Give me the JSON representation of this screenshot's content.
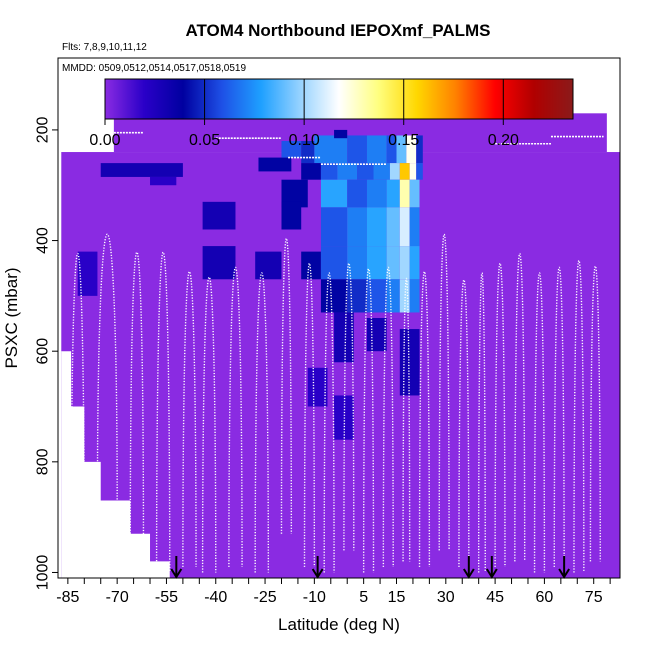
{
  "chart_data": {
    "type": "heatmap",
    "title": "ATOM4 Northbound IEPOXmf_PALMS",
    "subtitle_flights": "Flts: 7,8,9,10,11,12",
    "subtitle_dates": "MMDD: 0509,0512,0514,0517,0518,0519",
    "xlabel": "Latitude (deg N)",
    "ylabel": "PSXC (mbar)",
    "xlim": [
      -88,
      83
    ],
    "ylim": [
      1010,
      70
    ],
    "y_reversed": true,
    "x_tick_labels": [
      "-85",
      "-70",
      "-55",
      "-40",
      "-25",
      "-10",
      "5",
      "15",
      "30",
      "45",
      "60",
      "75"
    ],
    "x_tick_values": [
      -85,
      -70,
      -55,
      -40,
      -25,
      -10,
      5,
      15,
      30,
      45,
      60,
      75
    ],
    "y_tick_labels": [
      "200",
      "400",
      "600",
      "800",
      "1000"
    ],
    "y_tick_values": [
      200,
      400,
      600,
      800,
      1000
    ],
    "colorbar": {
      "min": 0.0,
      "max": 0.235,
      "tick_labels": [
        "0.00",
        "0.05",
        "0.10",
        "0.15",
        "0.20"
      ],
      "tick_values": [
        0.0,
        0.05,
        0.1,
        0.15,
        0.2
      ],
      "stops": [
        "#8a2be2",
        "#2a00c8",
        "#0000a0",
        "#1e50e6",
        "#1ea0ff",
        "#96d2ff",
        "#ffffff",
        "#ffff80",
        "#ffd700",
        "#ff8000",
        "#ff0000",
        "#b00000",
        "#8b1a1a"
      ]
    },
    "background_value": 0.0,
    "background_color": "#8A2BE2",
    "grid": false,
    "cells": [
      {
        "x0": -27,
        "x1": -17,
        "y0": 250,
        "y1": 275,
        "v": 0.04
      },
      {
        "x0": -20,
        "x1": -14,
        "y0": 220,
        "y1": 250,
        "v": 0.06
      },
      {
        "x0": -14,
        "x1": -10,
        "y0": 220,
        "y1": 260,
        "v": 0.05
      },
      {
        "x0": -10,
        "x1": -6,
        "y0": 210,
        "y1": 260,
        "v": 0.07
      },
      {
        "x0": -6,
        "x1": 0,
        "y0": 210,
        "y1": 260,
        "v": 0.07
      },
      {
        "x0": 0,
        "x1": 6,
        "y0": 210,
        "y1": 260,
        "v": 0.06
      },
      {
        "x0": 6,
        "x1": 12,
        "y0": 210,
        "y1": 260,
        "v": 0.07
      },
      {
        "x0": 12,
        "x1": 15,
        "y0": 210,
        "y1": 260,
        "v": 0.06
      },
      {
        "x0": 15,
        "x1": 18,
        "y0": 210,
        "y1": 260,
        "v": 0.09
      },
      {
        "x0": 18,
        "x1": 21,
        "y0": 210,
        "y1": 260,
        "v": 0.12
      },
      {
        "x0": 21,
        "x1": 23,
        "y0": 210,
        "y1": 260,
        "v": 0.05
      },
      {
        "x0": -14,
        "x1": -8,
        "y0": 260,
        "y1": 290,
        "v": 0.04
      },
      {
        "x0": -8,
        "x1": -3,
        "y0": 260,
        "y1": 290,
        "v": 0.06
      },
      {
        "x0": -3,
        "x1": 3,
        "y0": 260,
        "y1": 290,
        "v": 0.07
      },
      {
        "x0": 3,
        "x1": 8,
        "y0": 260,
        "y1": 290,
        "v": 0.06
      },
      {
        "x0": 8,
        "x1": 13,
        "y0": 260,
        "y1": 290,
        "v": 0.07
      },
      {
        "x0": 13,
        "x1": 16,
        "y0": 260,
        "y1": 290,
        "v": 0.1
      },
      {
        "x0": 16,
        "x1": 19,
        "y0": 260,
        "y1": 290,
        "v": 0.16
      },
      {
        "x0": 19,
        "x1": 21,
        "y0": 260,
        "y1": 290,
        "v": 0.12
      },
      {
        "x0": 21,
        "x1": 23,
        "y0": 260,
        "y1": 290,
        "v": 0.06
      },
      {
        "x0": -75,
        "x1": -50,
        "y0": 260,
        "y1": 285,
        "v": 0.03
      },
      {
        "x0": -60,
        "x1": -52,
        "y0": 285,
        "y1": 300,
        "v": 0.02
      },
      {
        "x0": -8,
        "x1": 0,
        "y0": 290,
        "y1": 340,
        "v": 0.08
      },
      {
        "x0": 0,
        "x1": 6,
        "y0": 290,
        "y1": 340,
        "v": 0.06
      },
      {
        "x0": 6,
        "x1": 12,
        "y0": 290,
        "y1": 340,
        "v": 0.07
      },
      {
        "x0": 12,
        "x1": 16,
        "y0": 290,
        "y1": 340,
        "v": 0.08
      },
      {
        "x0": 16,
        "x1": 19,
        "y0": 290,
        "y1": 340,
        "v": 0.13
      },
      {
        "x0": 19,
        "x1": 22,
        "y0": 290,
        "y1": 340,
        "v": 0.09
      },
      {
        "x0": -20,
        "x1": -12,
        "y0": 290,
        "y1": 340,
        "v": 0.04
      },
      {
        "x0": -44,
        "x1": -34,
        "y0": 330,
        "y1": 380,
        "v": 0.03
      },
      {
        "x0": -20,
        "x1": -14,
        "y0": 330,
        "y1": 380,
        "v": 0.04
      },
      {
        "x0": -8,
        "x1": 0,
        "y0": 340,
        "y1": 410,
        "v": 0.06
      },
      {
        "x0": 0,
        "x1": 6,
        "y0": 340,
        "y1": 410,
        "v": 0.07
      },
      {
        "x0": 6,
        "x1": 12,
        "y0": 340,
        "y1": 410,
        "v": 0.08
      },
      {
        "x0": 12,
        "x1": 16,
        "y0": 340,
        "y1": 410,
        "v": 0.09
      },
      {
        "x0": 16,
        "x1": 19,
        "y0": 340,
        "y1": 410,
        "v": 0.11
      },
      {
        "x0": 19,
        "x1": 22,
        "y0": 340,
        "y1": 410,
        "v": 0.07
      },
      {
        "x0": -82,
        "x1": -76,
        "y0": 420,
        "y1": 500,
        "v": 0.02
      },
      {
        "x0": -44,
        "x1": -34,
        "y0": 410,
        "y1": 470,
        "v": 0.03
      },
      {
        "x0": -28,
        "x1": -20,
        "y0": 420,
        "y1": 470,
        "v": 0.03
      },
      {
        "x0": -14,
        "x1": -8,
        "y0": 420,
        "y1": 470,
        "v": 0.04
      },
      {
        "x0": -8,
        "x1": 0,
        "y0": 410,
        "y1": 470,
        "v": 0.06
      },
      {
        "x0": 0,
        "x1": 6,
        "y0": 410,
        "y1": 470,
        "v": 0.07
      },
      {
        "x0": 6,
        "x1": 12,
        "y0": 410,
        "y1": 470,
        "v": 0.08
      },
      {
        "x0": 12,
        "x1": 16,
        "y0": 410,
        "y1": 470,
        "v": 0.09
      },
      {
        "x0": 16,
        "x1": 19,
        "y0": 410,
        "y1": 470,
        "v": 0.1
      },
      {
        "x0": 19,
        "x1": 22,
        "y0": 410,
        "y1": 470,
        "v": 0.08
      },
      {
        "x0": -8,
        "x1": 0,
        "y0": 470,
        "y1": 530,
        "v": 0.04
      },
      {
        "x0": 0,
        "x1": 6,
        "y0": 470,
        "y1": 530,
        "v": 0.05
      },
      {
        "x0": 6,
        "x1": 12,
        "y0": 470,
        "y1": 530,
        "v": 0.06
      },
      {
        "x0": 12,
        "x1": 16,
        "y0": 470,
        "y1": 530,
        "v": 0.07
      },
      {
        "x0": 16,
        "x1": 19,
        "y0": 470,
        "y1": 530,
        "v": 0.1
      },
      {
        "x0": 19,
        "x1": 22,
        "y0": 470,
        "y1": 530,
        "v": 0.07
      },
      {
        "x0": -4,
        "x1": 2,
        "y0": 530,
        "y1": 620,
        "v": 0.03
      },
      {
        "x0": 6,
        "x1": 12,
        "y0": 540,
        "y1": 600,
        "v": 0.03
      },
      {
        "x0": 16,
        "x1": 22,
        "y0": 560,
        "y1": 680,
        "v": 0.03
      },
      {
        "x0": -12,
        "x1": -6,
        "y0": 630,
        "y1": 700,
        "v": 0.02
      },
      {
        "x0": -4,
        "x1": 2,
        "y0": 680,
        "y1": 760,
        "v": 0.02
      },
      {
        "x0": -4,
        "x1": 0,
        "y0": 200,
        "y1": 215,
        "v": 0.04
      }
    ],
    "arrow_latitudes": [
      -52,
      -9,
      37,
      44,
      66
    ]
  }
}
